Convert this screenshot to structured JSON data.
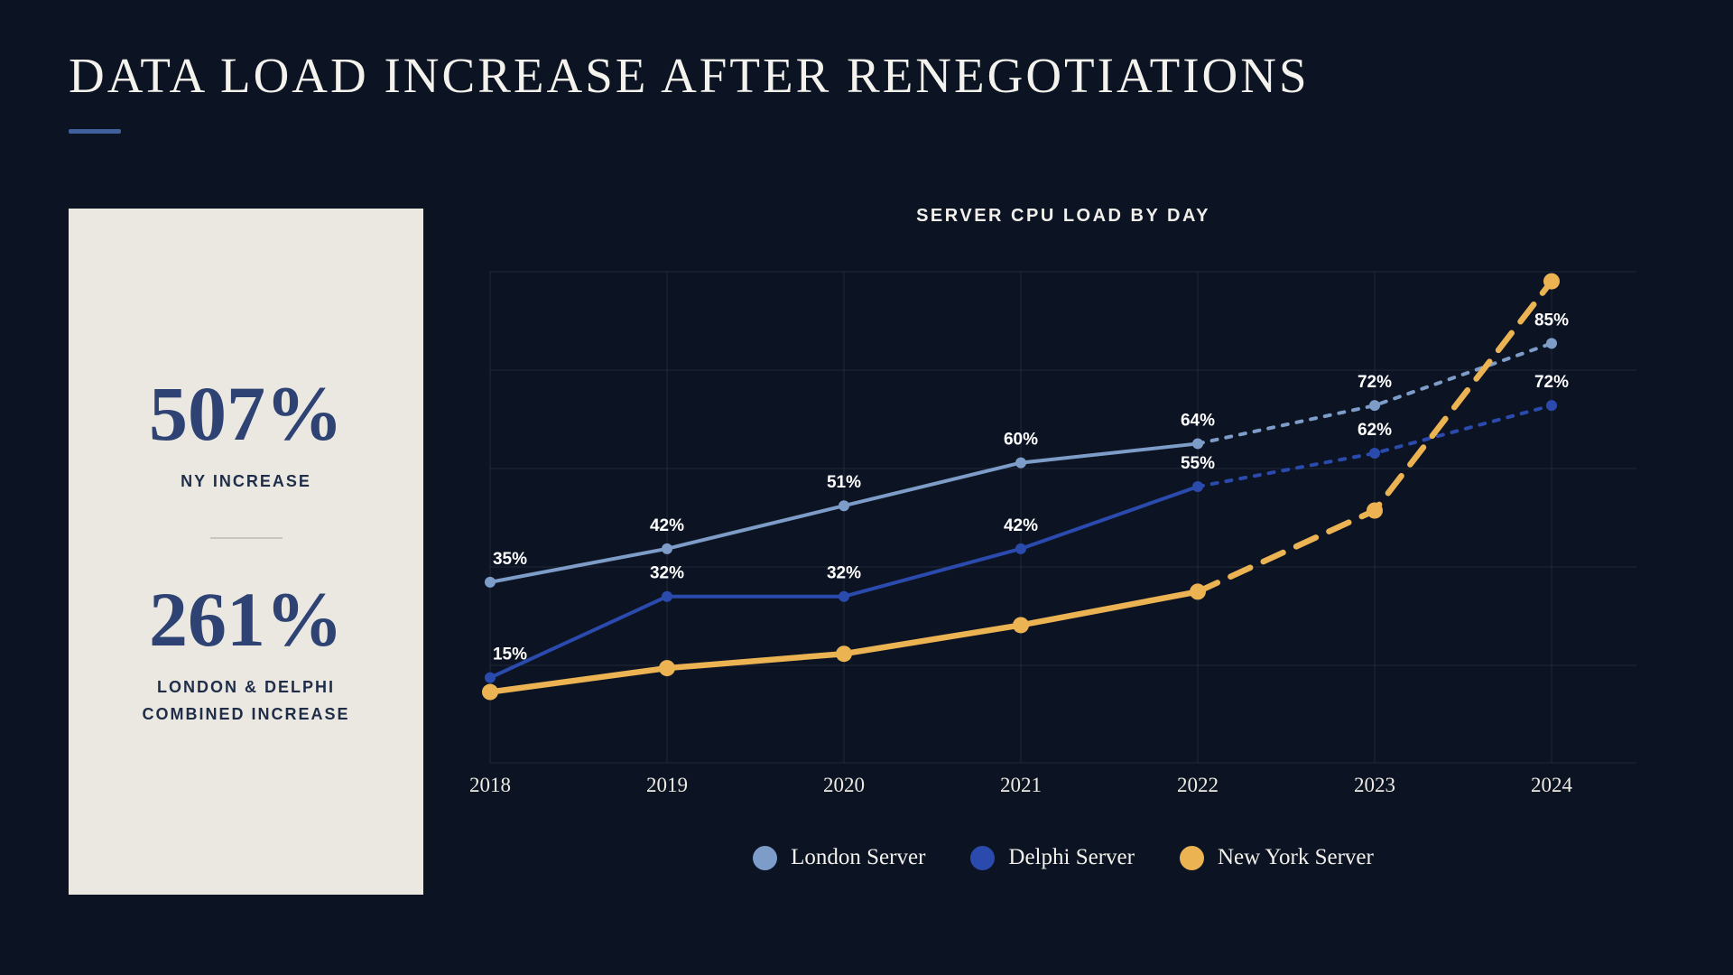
{
  "page": {
    "title": "DATA LOAD INCREASE AFTER RENEGOTIATIONS"
  },
  "colors": {
    "background": "#0c1424",
    "card": "#ebe8e2",
    "navy_text": "#2e4373",
    "accent_bar": "#41619c",
    "grid": "rgba(255,255,255,0.08)",
    "data_label": "#ffffff"
  },
  "stats": {
    "ny": {
      "value": "507%",
      "label": "NY INCREASE"
    },
    "combined": {
      "value": "261%",
      "label_line1": "LONDON & DELPHI",
      "label_line2": "COMBINED INCREASE"
    }
  },
  "chart_data": {
    "type": "line",
    "title": "SERVER CPU LOAD BY DAY",
    "x": [
      "2018",
      "2019",
      "2020",
      "2021",
      "2022",
      "2023",
      "2024"
    ],
    "xlabel": "",
    "ylabel": "",
    "ylim": [
      0,
      100
    ],
    "grid": true,
    "legend_position": "bottom",
    "note": "segments after 2022 are drawn dashed",
    "series": [
      {
        "name": "London Server",
        "color": "#7d9dc8",
        "values": [
          35,
          42,
          51,
          60,
          64,
          72,
          85
        ],
        "labels": [
          "35%",
          "42%",
          "51%",
          "60%",
          "64%",
          "72%",
          "85%"
        ],
        "dash_from_index": 4,
        "line_width": 4,
        "dash_pattern": "6 10",
        "point_radius": 6
      },
      {
        "name": "Delphi Server",
        "color": "#2b4aad",
        "values": [
          15,
          32,
          32,
          42,
          55,
          62,
          72
        ],
        "labels": [
          "15%",
          "32%",
          "32%",
          "42%",
          "55%",
          "62%",
          "72%"
        ],
        "dash_from_index": 4,
        "line_width": 4,
        "dash_pattern": "6 10",
        "point_radius": 6
      },
      {
        "name": "New York Server",
        "color": "#ecb353",
        "values": [
          12,
          17,
          20,
          26,
          33,
          50,
          98
        ],
        "labels": [
          "",
          "",
          "",
          "",
          "",
          "",
          ""
        ],
        "dash_from_index": 4,
        "line_width": 6.5,
        "dash_pattern": "24 16",
        "point_radius": 9
      }
    ]
  }
}
